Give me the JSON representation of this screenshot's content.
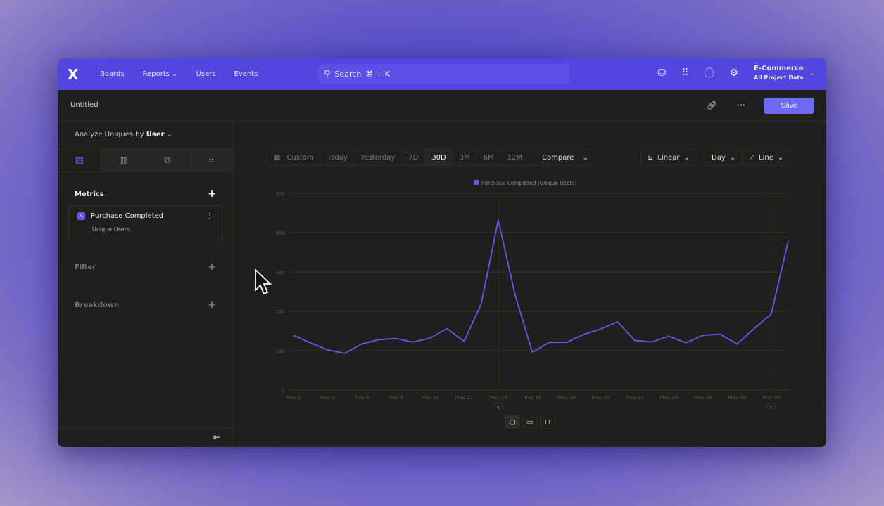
{
  "nav": {
    "logo": "X",
    "items": [
      "Boards",
      "Reports",
      "Users",
      "Events"
    ],
    "search": "Search",
    "shortcut": "⌘ + K",
    "project": "E-Commerce",
    "project_sub": "All Project Data"
  },
  "header": {
    "title": "Untitled",
    "save": "Save",
    "more": "•••"
  },
  "sidebar": {
    "analyze_label": "Analyze Uniques by",
    "analyze_value": "User",
    "metrics": "Metrics",
    "metric": {
      "badge": "A",
      "name": "Purchase Completed",
      "sub": "Unique Users"
    },
    "filter": "Filter",
    "breakdown": "Breakdown"
  },
  "toolbar": {
    "ranges": [
      "Custom",
      "Today",
      "Yesterday",
      "7D",
      "30D",
      "3M",
      "6M",
      "12M"
    ],
    "selected": "30D",
    "compare": "Compare",
    "scale": "Linear",
    "interval": "Day",
    "chart_type": "Line"
  },
  "chart_data": {
    "type": "line",
    "legend": "Purchase Completed (Unique Users)",
    "legend_position": "top",
    "color": "#6a55e8",
    "grid": true,
    "ylim": [
      0,
      500
    ],
    "yticks": [
      0,
      100,
      200,
      300,
      400,
      500
    ],
    "x": [
      "May 2",
      "May 3",
      "May 4",
      "May 5",
      "May 6",
      "May 7",
      "May 8",
      "May 9",
      "May 10",
      "May 11",
      "May 12",
      "May 13",
      "May 14",
      "May 15",
      "May 16",
      "May 17",
      "May 18",
      "May 19",
      "May 20",
      "May 21",
      "May 22",
      "May 23",
      "May 24",
      "May 25",
      "May 26",
      "May 27",
      "May 28",
      "May 29",
      "May 30",
      "May 31"
    ],
    "xtick_labels": [
      "May 2",
      "May 4",
      "May 6",
      "May 8",
      "May 10",
      "May 12",
      "May 14",
      "May 16",
      "May 18",
      "May 20",
      "May 22",
      "May 24",
      "May 26",
      "May 28",
      "May 30"
    ],
    "values": [
      139,
      120,
      102,
      93,
      117,
      128,
      131,
      122,
      132,
      156,
      124,
      219,
      432,
      240,
      96,
      121,
      121,
      141,
      155,
      173,
      126,
      122,
      137,
      120,
      139,
      142,
      117,
      156,
      193,
      379
    ],
    "annotations": [
      {
        "x": "May 14",
        "label": "1"
      },
      {
        "x": "May 30",
        "label": "1"
      }
    ]
  }
}
